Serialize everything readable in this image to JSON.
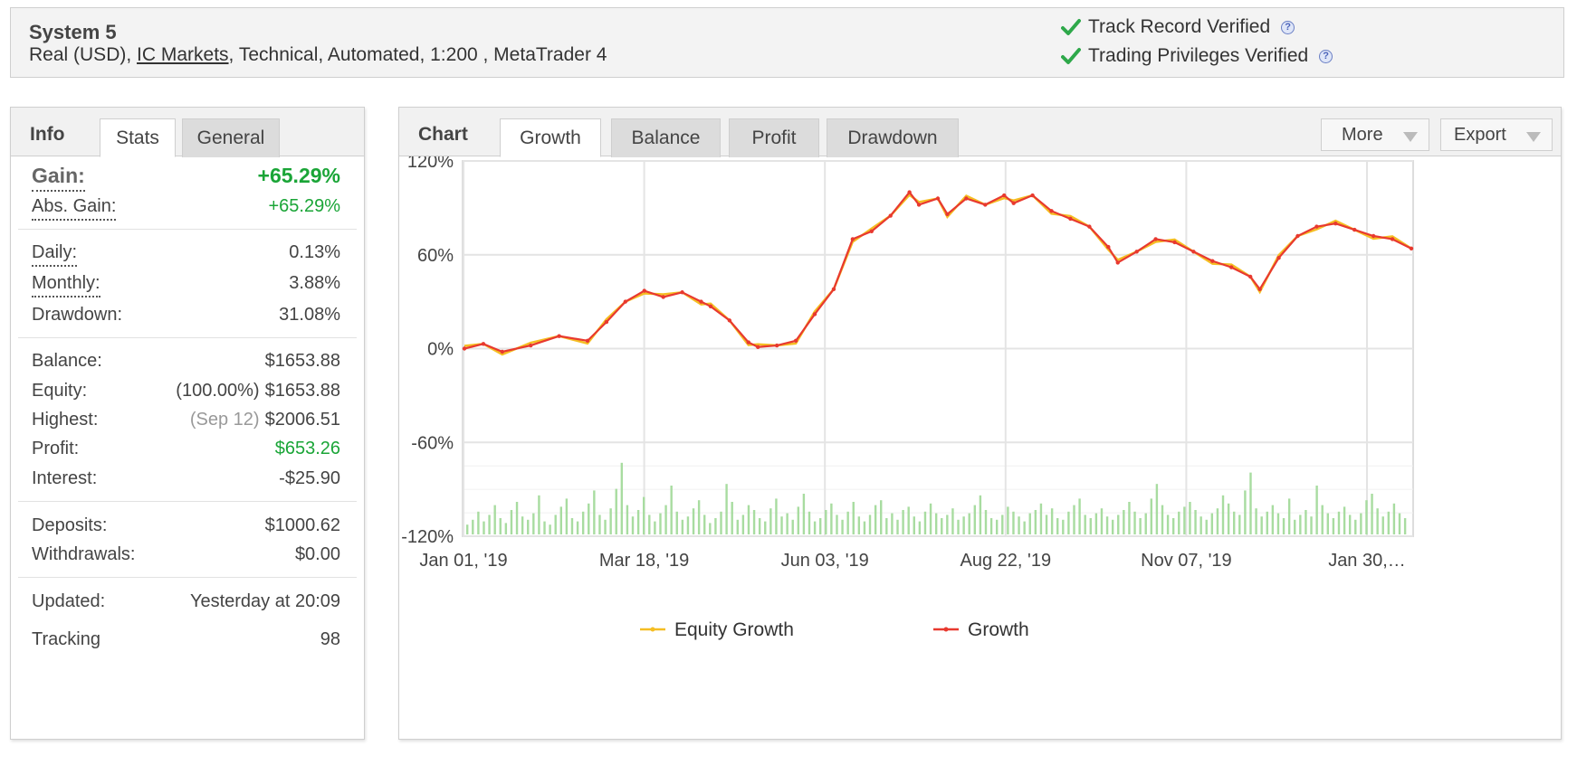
{
  "header": {
    "title": "System 5",
    "account_type": "Real (USD),",
    "broker": "IC Markets",
    "details": ", Technical, Automated, 1:200 , MetaTrader 4",
    "verifications": [
      {
        "label": "Track Record Verified"
      },
      {
        "label": "Trading Privileges Verified"
      }
    ],
    "help_glyph": "?"
  },
  "info": {
    "title": "Info",
    "tabs": [
      {
        "label": "Stats",
        "active": true
      },
      {
        "label": "General",
        "active": false
      }
    ],
    "gain": {
      "label": "Gain:",
      "value": "+65.29%"
    },
    "abs_gain": {
      "label": "Abs. Gain:",
      "value": "+65.29%"
    },
    "daily": {
      "label": "Daily:",
      "value": "0.13%"
    },
    "monthly": {
      "label": "Monthly:",
      "value": "3.88%"
    },
    "drawdown": {
      "label": "Drawdown:",
      "value": "31.08%"
    },
    "balance": {
      "label": "Balance:",
      "value": "$1653.88"
    },
    "equity": {
      "label": "Equity:",
      "pct": "(100.00%)",
      "value": "$1653.88"
    },
    "highest": {
      "label": "Highest:",
      "date": "(Sep 12)",
      "value": "$2006.51"
    },
    "profit": {
      "label": "Profit:",
      "value": "$653.26"
    },
    "interest": {
      "label": "Interest:",
      "value": "-$25.90"
    },
    "deposits": {
      "label": "Deposits:",
      "value": "$1000.62"
    },
    "withdrawals": {
      "label": "Withdrawals:",
      "value": "$0.00"
    },
    "updated": {
      "label": "Updated:",
      "value": "Yesterday at 20:09"
    },
    "tracking": {
      "label": "Tracking",
      "value": "98"
    }
  },
  "chart_panel": {
    "title": "Chart",
    "tabs": [
      {
        "label": "Growth",
        "active": true
      },
      {
        "label": "Balance",
        "active": false
      },
      {
        "label": "Profit",
        "active": false
      },
      {
        "label": "Drawdown",
        "active": false
      }
    ],
    "more_label": "More",
    "export_label": "Export"
  },
  "colors": {
    "growth": "#e8392f",
    "equity": "#f5be23",
    "volume": "#a8dca0",
    "green_value": "#1aa537"
  },
  "chart_data": {
    "type": "line",
    "y_tick_labels": [
      "120%",
      "60%",
      "0%",
      "-60%",
      "-120%"
    ],
    "x_tick_labels": [
      "Jan 01, '19",
      "Mar 18, '19",
      "Jun 03, '19",
      "Aug 22, '19",
      "Nov 07, '19",
      "Jan 30,…"
    ],
    "ylim": [
      -120,
      120
    ],
    "grid": true,
    "legend_position": "bottom",
    "series": [
      {
        "name": "Equity Growth",
        "color": "#f5be23"
      },
      {
        "name": "Growth",
        "color": "#e8392f",
        "x": [
          0,
          10,
          20,
          35,
          50,
          65,
          75,
          85,
          95,
          105,
          115,
          125,
          130,
          140,
          150,
          155,
          165,
          175,
          185,
          195,
          205,
          215,
          225,
          235,
          240,
          250,
          255,
          265,
          275,
          285,
          290,
          300,
          310,
          320,
          330,
          340,
          345,
          355,
          365,
          375,
          385,
          395,
          405,
          415,
          420,
          430,
          440,
          450,
          460,
          470,
          480,
          490,
          500
        ],
        "values": [
          0,
          3,
          -2,
          2,
          8,
          5,
          17,
          30,
          37,
          33,
          36,
          30,
          27,
          18,
          4,
          1,
          2,
          5,
          22,
          38,
          70,
          75,
          85,
          100,
          92,
          96,
          86,
          96,
          92,
          98,
          93,
          98,
          88,
          83,
          78,
          65,
          55,
          62,
          70,
          68,
          62,
          56,
          52,
          46,
          38,
          58,
          72,
          78,
          80,
          76,
          72,
          70,
          64
        ]
      }
    ],
    "volume_series": [
      6,
      9,
      14,
      8,
      12,
      18,
      10,
      7,
      15,
      20,
      11,
      9,
      13,
      24,
      8,
      6,
      12,
      17,
      22,
      10,
      8,
      14,
      19,
      27,
      12,
      9,
      16,
      28,
      44,
      18,
      11,
      15,
      23,
      12,
      8,
      13,
      18,
      30,
      14,
      9,
      11,
      16,
      21,
      12,
      7,
      10,
      14,
      31,
      20,
      9,
      12,
      18,
      15,
      10,
      8,
      16,
      22,
      11,
      13,
      9,
      17,
      25,
      14,
      8,
      10,
      15,
      19,
      12,
      9,
      14,
      20,
      11,
      8,
      12,
      18,
      21,
      10,
      13,
      9,
      15,
      17,
      11,
      8,
      14,
      19,
      13,
      10,
      12,
      16,
      9,
      11,
      13,
      18,
      24,
      15,
      10,
      9,
      12,
      17,
      14,
      11,
      8,
      13,
      15,
      19,
      12,
      16,
      10,
      9,
      14,
      18,
      22,
      12,
      10,
      13,
      16,
      11,
      9,
      12,
      15,
      20,
      14,
      10,
      13,
      22,
      31,
      18,
      12,
      10,
      14,
      17,
      20,
      15,
      11,
      9,
      13,
      16,
      24,
      19,
      14,
      12,
      27,
      38,
      16,
      11,
      14,
      18,
      13,
      10,
      22,
      9,
      12,
      15,
      11,
      30,
      18,
      13,
      10,
      14,
      17,
      12,
      9,
      13,
      21,
      25,
      16,
      11,
      14,
      19,
      13,
      10
    ]
  }
}
